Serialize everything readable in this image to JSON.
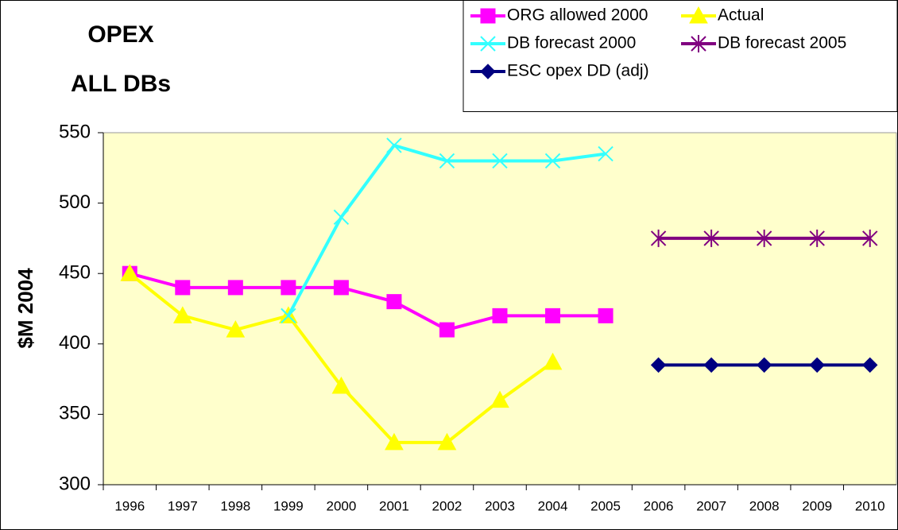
{
  "chart_data": {
    "type": "line",
    "title": [
      "OPEX",
      "ALL DBs"
    ],
    "y_label": "$M 2004",
    "categories": [
      "1996",
      "1997",
      "1998",
      "1999",
      "2000",
      "2001",
      "2002",
      "2003",
      "2004",
      "2005",
      "2006",
      "2007",
      "2008",
      "2009",
      "2010"
    ],
    "series": [
      {
        "name": "ORG allowed 2000",
        "color": "#ff00ff",
        "marker": "square",
        "values": [
          450,
          440,
          440,
          440,
          440,
          430,
          410,
          420,
          420,
          420,
          null,
          null,
          null,
          null,
          null
        ]
      },
      {
        "name": "Actual",
        "color": "#ffff00",
        "marker": "triangle",
        "values": [
          450,
          420,
          410,
          420,
          370,
          330,
          330,
          360,
          387,
          null,
          null,
          null,
          null,
          null,
          null
        ]
      },
      {
        "name": "DB forecast 2000",
        "color": "#33ffff",
        "marker": "x",
        "values": [
          null,
          null,
          null,
          420,
          490,
          541,
          530,
          530,
          530,
          535,
          null,
          null,
          null,
          null,
          null
        ]
      },
      {
        "name": "DB forecast 2005",
        "color": "#800080",
        "marker": "asterisk",
        "values": [
          null,
          null,
          null,
          null,
          null,
          null,
          null,
          null,
          null,
          null,
          475,
          475,
          475,
          475,
          475
        ]
      },
      {
        "name": "ESC opex DD (adj)",
        "color": "#000080",
        "marker": "diamond",
        "values": [
          null,
          null,
          null,
          null,
          null,
          null,
          null,
          null,
          null,
          null,
          385,
          385,
          385,
          385,
          385
        ]
      }
    ],
    "ylim": [
      300,
      550
    ],
    "yticks": [
      300,
      350,
      400,
      450,
      500,
      550
    ],
    "grid": false,
    "plot_background": "#ffffcc",
    "legend": "top-right"
  }
}
